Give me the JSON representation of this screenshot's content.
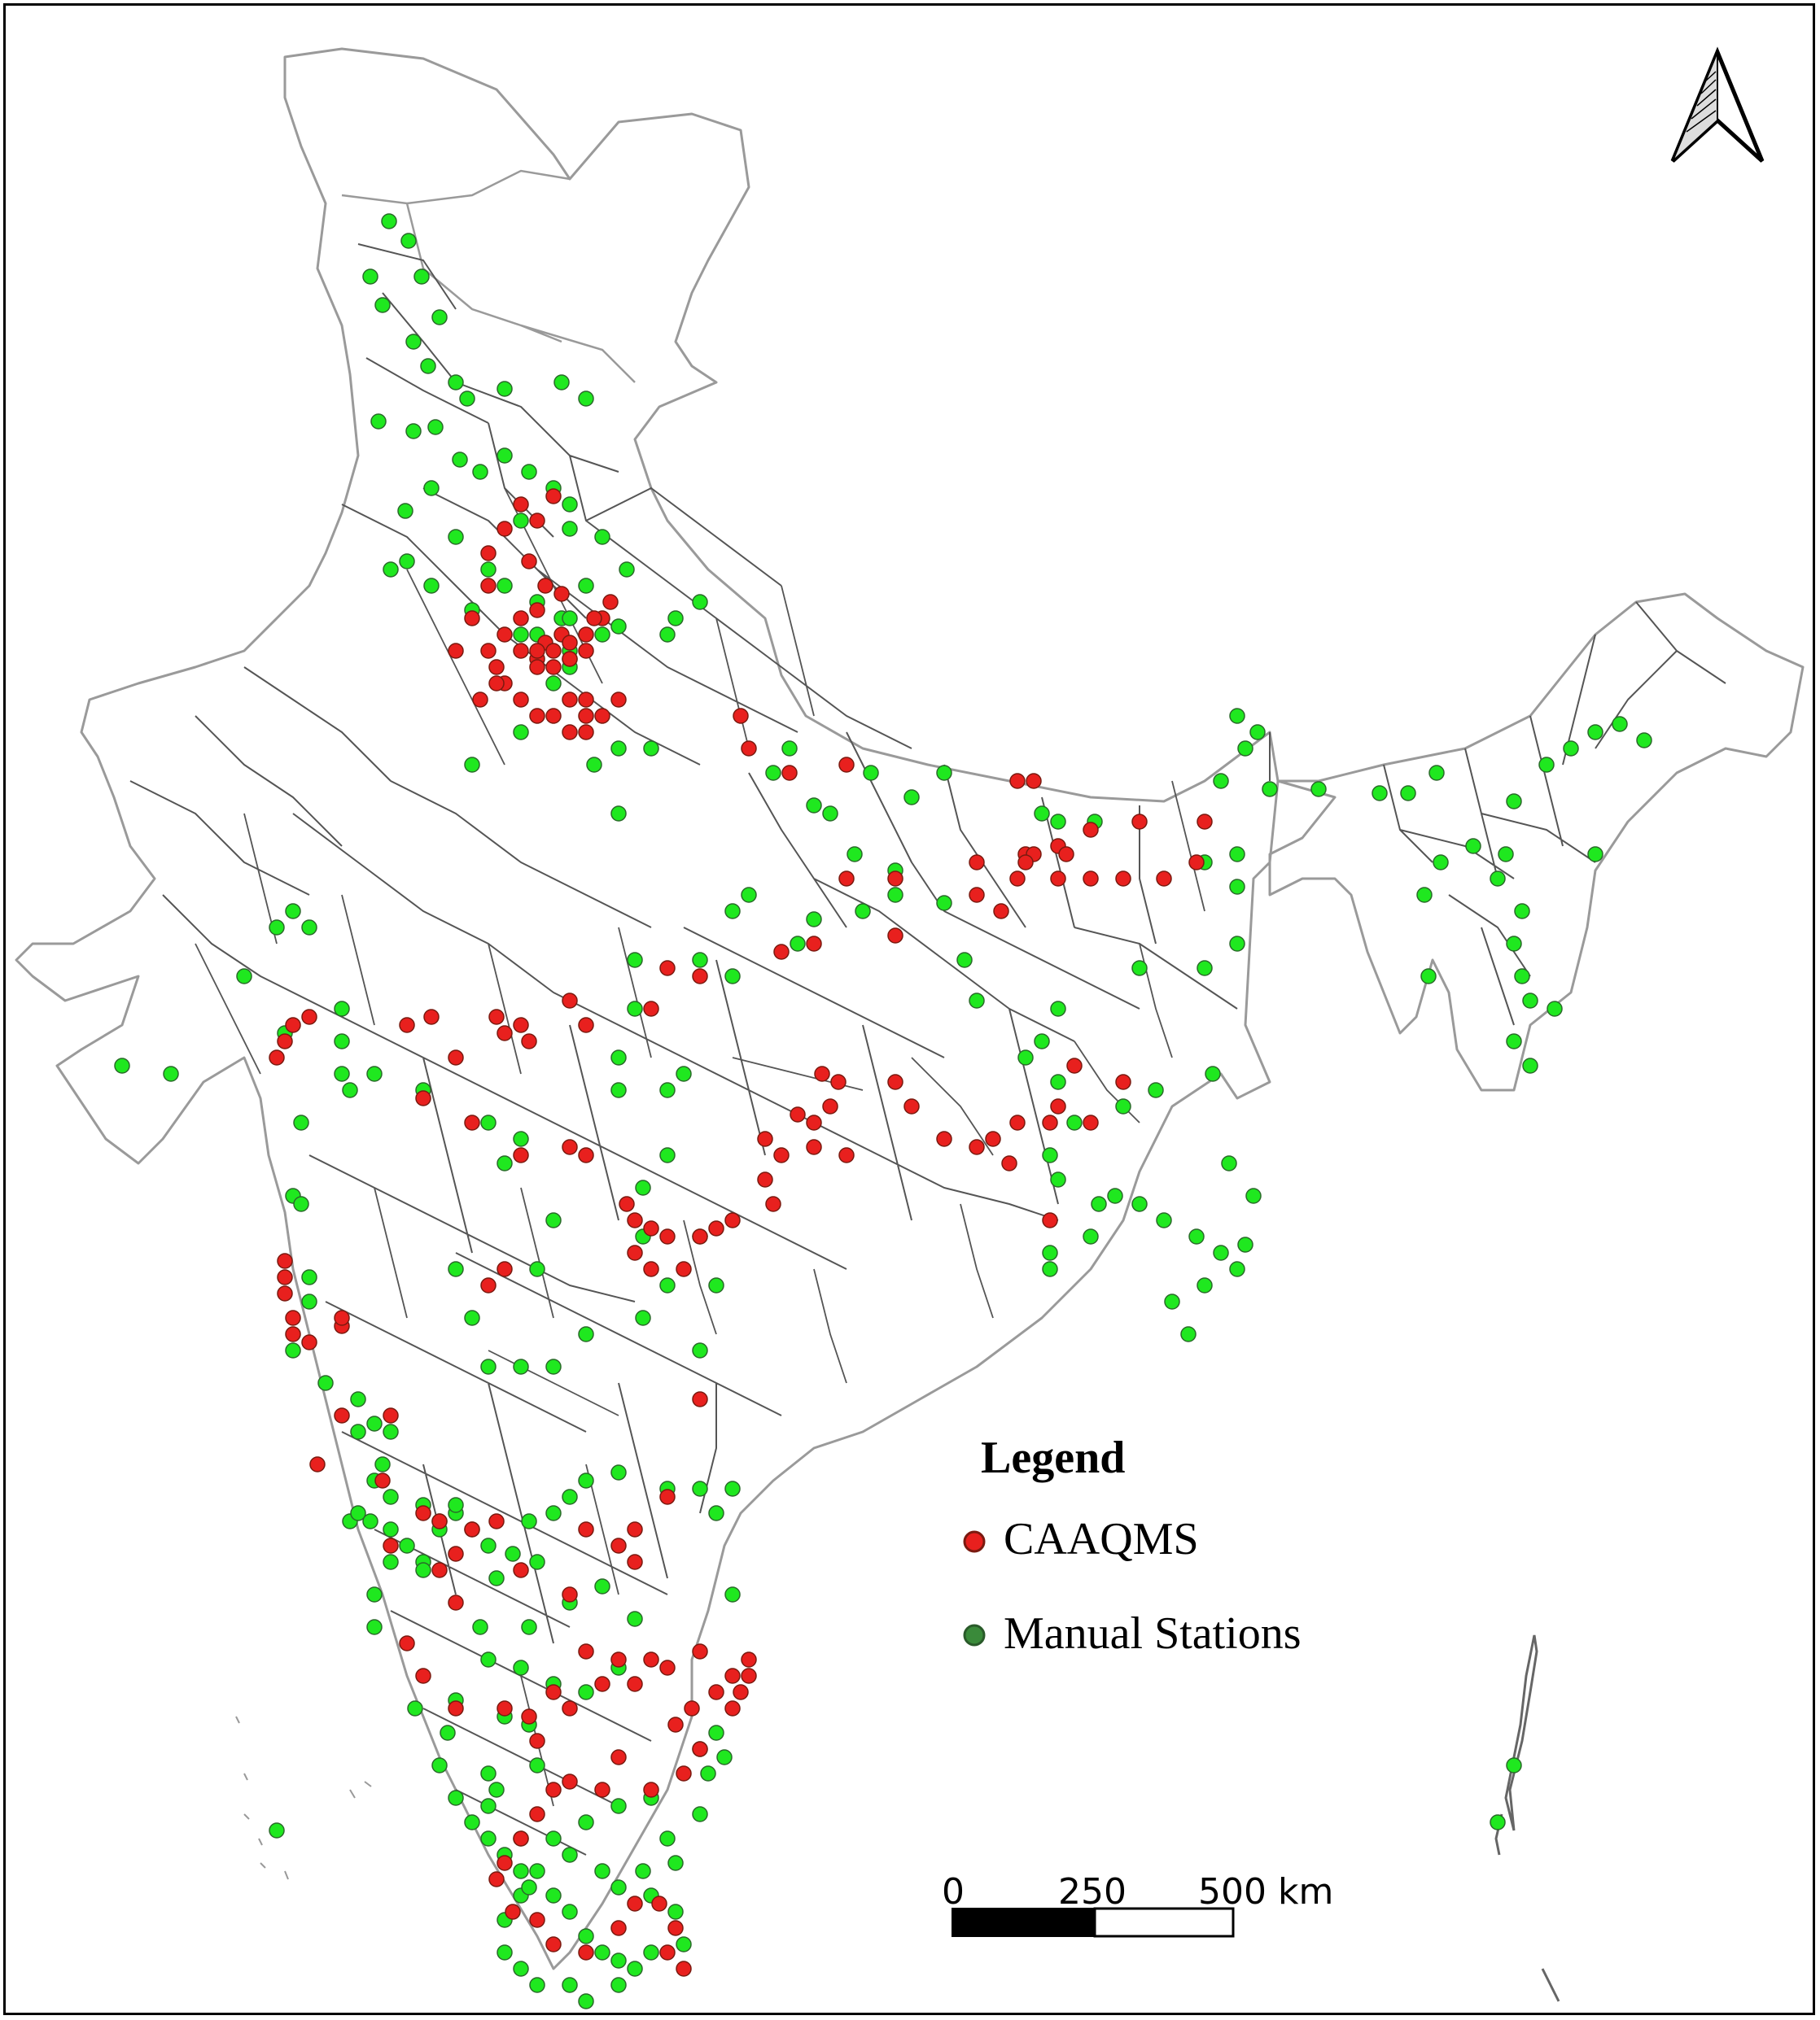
{
  "legend": {
    "title": "Legend",
    "items": [
      {
        "label": "CAAQMS",
        "color": "#e8201e",
        "edge": "#7a1a10"
      },
      {
        "label": "Manual Stations",
        "color": "#1fe81f",
        "edge": "#2a6a2a"
      }
    ]
  },
  "scale_bar": {
    "ticks": [
      "0",
      "250",
      "500 km"
    ]
  },
  "north_arrow": {
    "icon": "north-arrow-icon"
  },
  "map": {
    "border_color": "#9a9a9a",
    "district_color": "#555555"
  }
}
